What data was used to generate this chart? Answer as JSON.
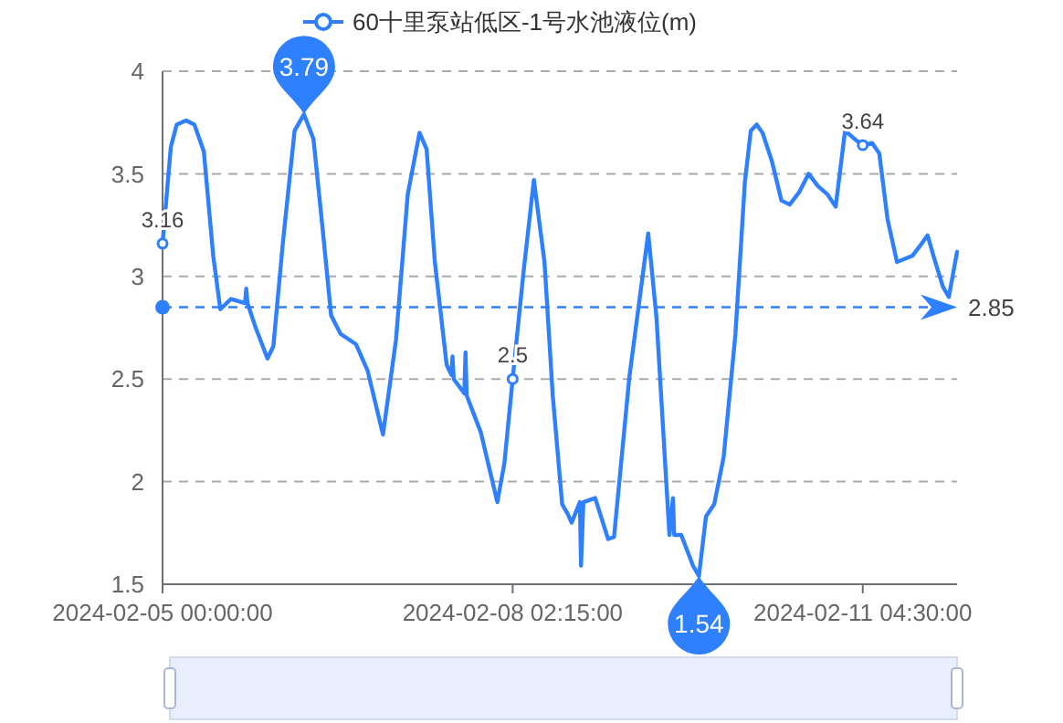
{
  "chart_data": {
    "type": "line",
    "legend": "top",
    "xlim": [
      "2024-02-05T00:00",
      "2024-02-12T00:30"
    ],
    "xticks": [
      {
        "value": "2024-02-05T00:00",
        "label": "2024-02-05 00:00:00"
      },
      {
        "value": "2024-02-08T02:15",
        "label": "2024-02-08 02:15:00"
      },
      {
        "value": "2024-02-11T04:30",
        "label": "2024-02-11 04:30:00"
      }
    ],
    "ylim": [
      1.5,
      4
    ],
    "yticks": [
      1.5,
      2,
      2.5,
      3,
      3.5,
      4
    ],
    "grid": "y",
    "line_style": "solid",
    "x": [
      "2024-02-05T00:00",
      "2024-02-05T01:45",
      "2024-02-05T03:00",
      "2024-02-05T05:00",
      "2024-02-05T06:45",
      "2024-02-05T08:45",
      "2024-02-05T10:45",
      "2024-02-05T12:15",
      "2024-02-05T14:30",
      "2024-02-05T17:30",
      "2024-02-05T17:45",
      "2024-02-05T18:00",
      "2024-02-05T19:45",
      "2024-02-05T22:15",
      "2024-02-05T23:30",
      "2024-02-06T01:30",
      "2024-02-06T04:00",
      "2024-02-06T06:00",
      "2024-02-06T08:00",
      "2024-02-06T10:00",
      "2024-02-06T11:45",
      "2024-02-06T13:45",
      "2024-02-06T17:00",
      "2024-02-06T19:30",
      "2024-02-06T22:45",
      "2024-02-07T01:30",
      "2024-02-07T04:00",
      "2024-02-07T06:30",
      "2024-02-07T08:00",
      "2024-02-07T09:45",
      "2024-02-07T12:15",
      "2024-02-07T13:15",
      "2024-02-07T13:30",
      "2024-02-07T13:45",
      "2024-02-07T16:00",
      "2024-02-07T16:15",
      "2024-02-07T16:30",
      "2024-02-07T19:30",
      "2024-02-07T23:00",
      "2024-02-08T00:30",
      "2024-02-08T02:15",
      "2024-02-08T04:30",
      "2024-02-08T06:45",
      "2024-02-08T09:00",
      "2024-02-08T10:45",
      "2024-02-08T12:45",
      "2024-02-08T14:00",
      "2024-02-08T14:45",
      "2024-02-08T16:30",
      "2024-02-08T16:45",
      "2024-02-08T17:15",
      "2024-02-08T19:45",
      "2024-02-08T22:30",
      "2024-02-08T23:45",
      "2024-02-09T03:00",
      "2024-02-09T07:00",
      "2024-02-09T08:45",
      "2024-02-09T11:30",
      "2024-02-09T12:15",
      "2024-02-09T12:30",
      "2024-02-09T14:00",
      "2024-02-09T16:30",
      "2024-02-09T17:45",
      "2024-02-09T19:15",
      "2024-02-09T21:00",
      "2024-02-09T23:00",
      "2024-02-10T01:30",
      "2024-02-10T03:30",
      "2024-02-10T04:45",
      "2024-02-10T06:00",
      "2024-02-10T07:15",
      "2024-02-10T09:15",
      "2024-02-10T11:15",
      "2024-02-10T13:00",
      "2024-02-10T15:00",
      "2024-02-10T17:00",
      "2024-02-10T19:00",
      "2024-02-10T21:00",
      "2024-02-10T22:45",
      "2024-02-11T00:45",
      "2024-02-11T02:45",
      "2024-02-11T04:30",
      "2024-02-11T06:30",
      "2024-02-11T08:00",
      "2024-02-11T09:45",
      "2024-02-11T11:45",
      "2024-02-11T15:00",
      "2024-02-11T17:00",
      "2024-02-11T18:15",
      "2024-02-11T19:30",
      "2024-02-11T21:30",
      "2024-02-11T22:45",
      "2024-02-12T00:30"
    ],
    "series": [
      {
        "name": "60十里泵站低区-1号水池液位(m)",
        "color": "#2f80ff",
        "values": [
          3.16,
          3.63,
          3.74,
          3.76,
          3.74,
          3.61,
          3.1,
          2.84,
          2.89,
          2.87,
          2.94,
          2.87,
          2.75,
          2.6,
          2.66,
          3.16,
          3.71,
          3.79,
          3.67,
          3.22,
          2.81,
          2.72,
          2.67,
          2.54,
          2.23,
          2.69,
          3.4,
          3.7,
          3.62,
          3.07,
          2.57,
          2.52,
          2.61,
          2.5,
          2.43,
          2.63,
          2.42,
          2.24,
          1.9,
          2.09,
          2.5,
          3.01,
          3.47,
          3.07,
          2.42,
          1.89,
          1.84,
          1.8,
          1.9,
          1.59,
          1.9,
          1.92,
          1.72,
          1.73,
          2.51,
          3.21,
          2.8,
          1.74,
          1.92,
          1.74,
          1.74,
          1.59,
          1.54,
          1.83,
          1.89,
          2.12,
          2.72,
          3.46,
          3.71,
          3.74,
          3.7,
          3.56,
          3.37,
          3.35,
          3.41,
          3.5,
          3.44,
          3.4,
          3.34,
          3.71,
          3.67,
          3.64,
          3.65,
          3.6,
          3.28,
          3.07,
          3.1,
          3.16,
          3.2,
          3.1,
          2.95,
          2.9,
          3.12
        ],
        "value_labels": [
          "3.16",
          null,
          null,
          null,
          null,
          null,
          null,
          null,
          null,
          null,
          null,
          null,
          null,
          null,
          null,
          null,
          null,
          null,
          null,
          null,
          null,
          null,
          null,
          null,
          null,
          null,
          null,
          null,
          null,
          null,
          null,
          null,
          null,
          null,
          null,
          null,
          null,
          null,
          null,
          null,
          "2.5",
          null,
          null,
          null,
          null,
          null,
          null,
          null,
          null,
          null,
          null,
          null,
          null,
          null,
          null,
          null,
          null,
          null,
          null,
          null,
          null,
          null,
          null,
          null,
          null,
          null,
          null,
          null,
          null,
          null,
          null,
          null,
          null,
          null,
          null,
          null,
          null,
          null,
          null,
          null,
          null,
          "3.64",
          null,
          null,
          null,
          null,
          null,
          null,
          null,
          null,
          null,
          null,
          null
        ]
      }
    ],
    "ref_lines": [
      {
        "axis": "y",
        "value": 2.85,
        "label": "2.85",
        "color": "#2f80ff",
        "line_style": "dashed"
      }
    ],
    "annotations": [
      {
        "text": "3.79",
        "x": "2024-02-06T06:00",
        "y": 3.79
      },
      {
        "text": "1.54",
        "x": "2024-02-09T17:45",
        "y": 1.54
      }
    ]
  }
}
